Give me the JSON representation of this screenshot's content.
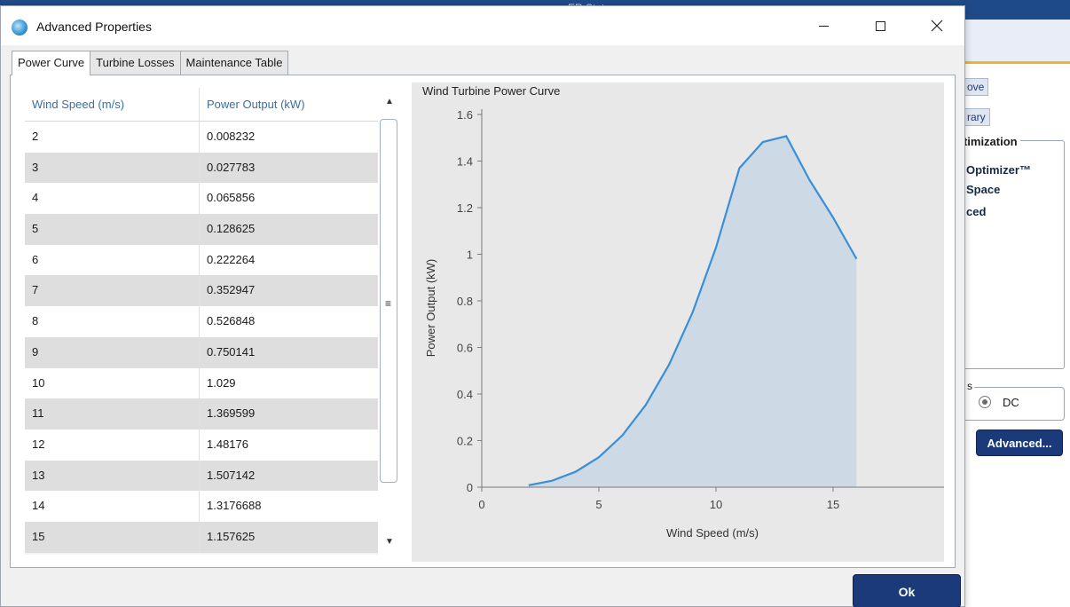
{
  "background": {
    "topbar_title": "ER Stat",
    "buttons": {
      "move": "ove",
      "library": "rary",
      "advanced": "Advanced..."
    },
    "optimization_group": {
      "title": "ptimization",
      "items": [
        "Optimizer™",
        "Space",
        "ced"
      ]
    },
    "output_group": {
      "title": "s",
      "radio_label": "DC"
    }
  },
  "dialog": {
    "title": "Advanced Properties",
    "window_controls": {
      "minimize": "minimize-icon",
      "maximize": "maximize-icon",
      "close": "close-icon"
    },
    "tabs": [
      {
        "label": "Power Curve",
        "active": true
      },
      {
        "label": "Turbine Losses",
        "active": false
      },
      {
        "label": "Maintenance Table",
        "active": false
      }
    ],
    "table": {
      "columns": [
        "Wind Speed (m/s)",
        "Power Output (kW)"
      ],
      "rows": [
        [
          "2",
          "0.008232"
        ],
        [
          "3",
          "0.027783"
        ],
        [
          "4",
          "0.065856"
        ],
        [
          "5",
          "0.128625"
        ],
        [
          "6",
          "0.222264"
        ],
        [
          "7",
          "0.352947"
        ],
        [
          "8",
          "0.526848"
        ],
        [
          "9",
          "0.750141"
        ],
        [
          "10",
          "1.029"
        ],
        [
          "11",
          "1.369599"
        ],
        [
          "12",
          "1.48176"
        ],
        [
          "13",
          "1.507142"
        ],
        [
          "14",
          "1.3176688"
        ],
        [
          "15",
          "1.157625"
        ]
      ]
    },
    "ok_label": "Ok"
  },
  "chart_data": {
    "type": "area",
    "title": "Wind Turbine Power Curve",
    "xlabel": "Wind Speed (m/s)",
    "ylabel": "Power Output (kW)",
    "xlim": [
      0,
      20
    ],
    "ylim": [
      0,
      1.6
    ],
    "xticks": [
      "0",
      "5",
      "10",
      "15",
      "20"
    ],
    "yticks": [
      "0",
      "0.2",
      "0.4",
      "0.6",
      "0.8",
      "1",
      "1.2",
      "1.4",
      "1.6"
    ],
    "grid": false,
    "x": [
      2,
      3,
      4,
      5,
      6,
      7,
      8,
      9,
      10,
      11,
      12,
      13,
      14,
      15,
      16
    ],
    "series": [
      {
        "values": [
          0.008232,
          0.027783,
          0.065856,
          0.128625,
          0.222264,
          0.352947,
          0.526848,
          0.750141,
          1.029,
          1.369599,
          1.48176,
          1.507142,
          1.3176688,
          1.157625,
          0.98
        ]
      }
    ],
    "colors": {
      "line": "#3a8fd6",
      "fill": "#cdd9e5"
    }
  }
}
